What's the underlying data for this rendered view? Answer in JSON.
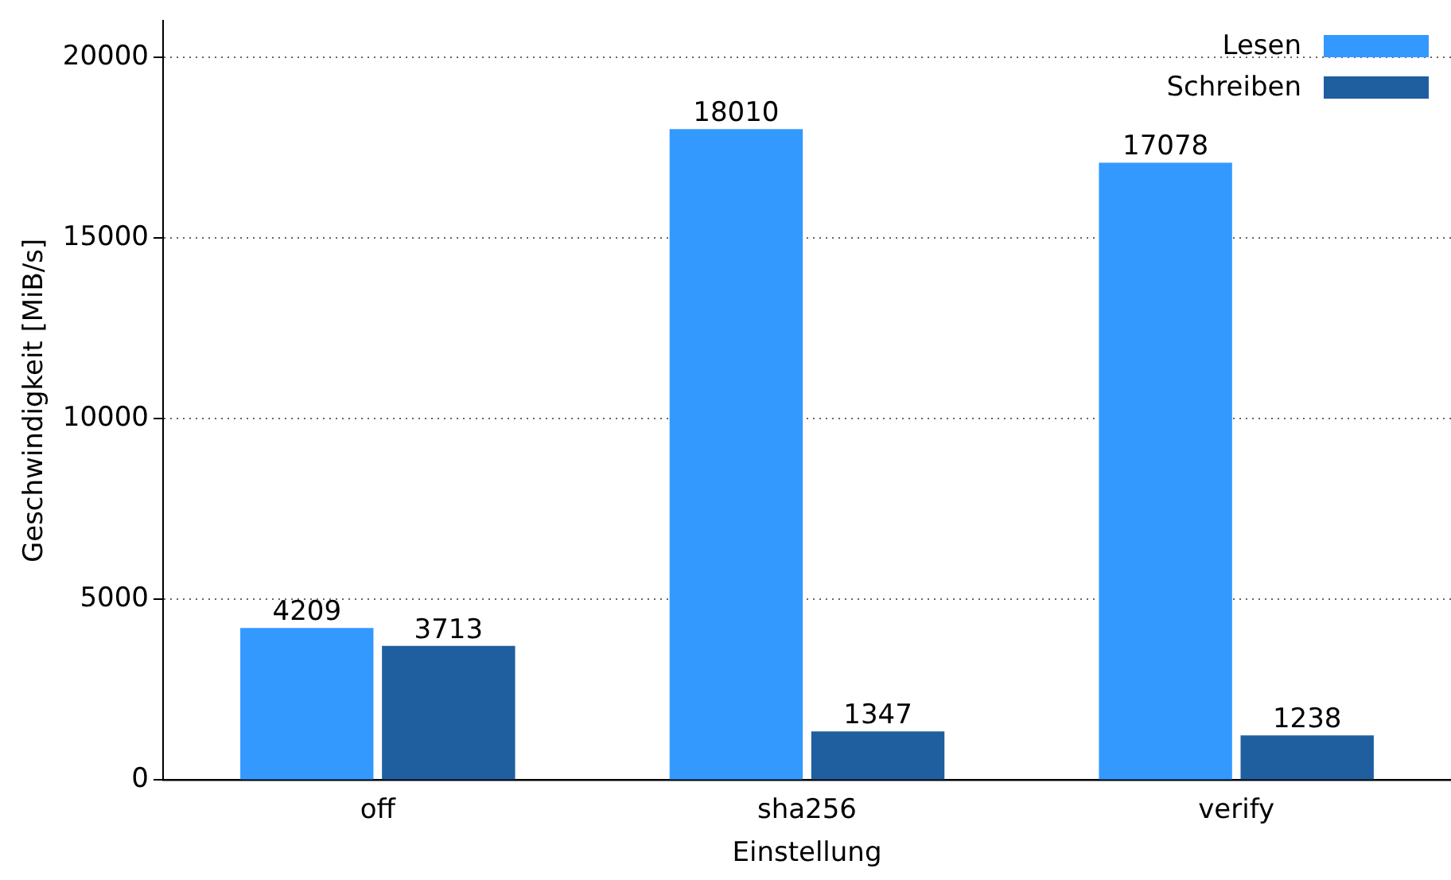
{
  "chart_data": {
    "type": "bar",
    "xlabel": "Einstellung",
    "ylabel": "Geschwindigkeit [MiB/s]",
    "categories": [
      "off",
      "sha256",
      "verify"
    ],
    "series": [
      {
        "name": "Lesen",
        "color": "#3399ff",
        "values": [
          4209,
          18010,
          17078
        ]
      },
      {
        "name": "Schreiben",
        "color": "#1f5f9f",
        "values": [
          3713,
          1347,
          1238
        ]
      }
    ],
    "ylim": [
      0,
      21000
    ],
    "yticks": [
      0,
      5000,
      10000,
      15000,
      20000
    ],
    "grid": "y",
    "legend": "top right",
    "data_labels": true
  }
}
